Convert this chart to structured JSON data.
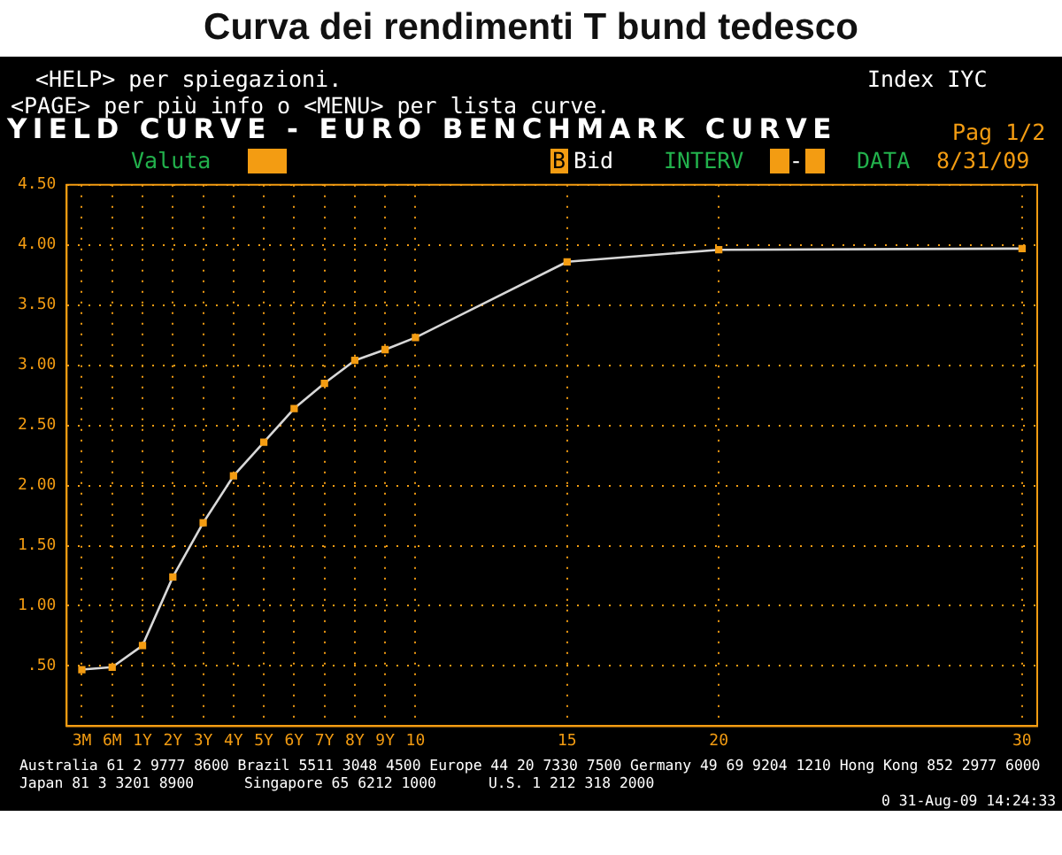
{
  "chart_data": {
    "type": "line",
    "title": "Curva dei rendimenti T bund tedesco",
    "subtitle": "YIELD CURVE - EURO BENCHMARK CURVE",
    "annotations": [
      "<HELP> per spiegazioni.",
      "Index IYC",
      "<PAGE> per più info o <MENU> per lista curve.",
      "Pag 1/2",
      "Valuta",
      "B",
      "Bid",
      "INTERV",
      "-",
      "DATA",
      "8/31/09",
      "Australia 61 2 9777 8600 Brazil 5511 3048 4500 Europe 44 20 7330 7500 Germany 49 69 9204 1210 Hong Kong 852 2977 6000",
      "Japan 81 3 3201 8900",
      "Singapore 65 6212 1000",
      "U.S. 1 212 318 2000",
      "0 31-Aug-09 14:24:33"
    ],
    "categories": [
      "3M",
      "6M",
      "1Y",
      "2Y",
      "3Y",
      "4Y",
      "5Y",
      "6Y",
      "7Y",
      "8Y",
      "9Y",
      "10",
      null,
      null,
      null,
      null,
      "15",
      null,
      null,
      null,
      null,
      "20",
      null,
      null,
      null,
      null,
      null,
      null,
      null,
      null,
      null,
      "30"
    ],
    "series": [
      {
        "color": "#d8d8d8",
        "values": [
          0.47,
          0.49,
          0.67,
          1.24,
          1.69,
          2.08,
          2.36,
          2.64,
          2.85,
          3.04,
          3.13,
          3.23,
          null,
          null,
          null,
          null,
          3.86,
          null,
          null,
          null,
          null,
          3.96,
          null,
          null,
          null,
          null,
          null,
          null,
          null,
          null,
          null,
          3.97
        ]
      }
    ],
    "ylim": [
      0,
      4.5
    ],
    "yticks": [
      {
        "value": 0.5,
        "label": ".50"
      },
      {
        "value": 1,
        "label": "1.00"
      },
      {
        "value": 1.5,
        "label": "1.50"
      },
      {
        "value": 2,
        "label": "2.00"
      },
      {
        "value": 2.5,
        "label": "2.50"
      },
      {
        "value": 3,
        "label": "3.00"
      },
      {
        "value": 3.5,
        "label": "3.50"
      },
      {
        "value": 4,
        "label": "4.00"
      },
      {
        "value": 4.5,
        "label": "4.50"
      }
    ],
    "grid": true,
    "marker": "square",
    "line_style": "solid"
  }
}
